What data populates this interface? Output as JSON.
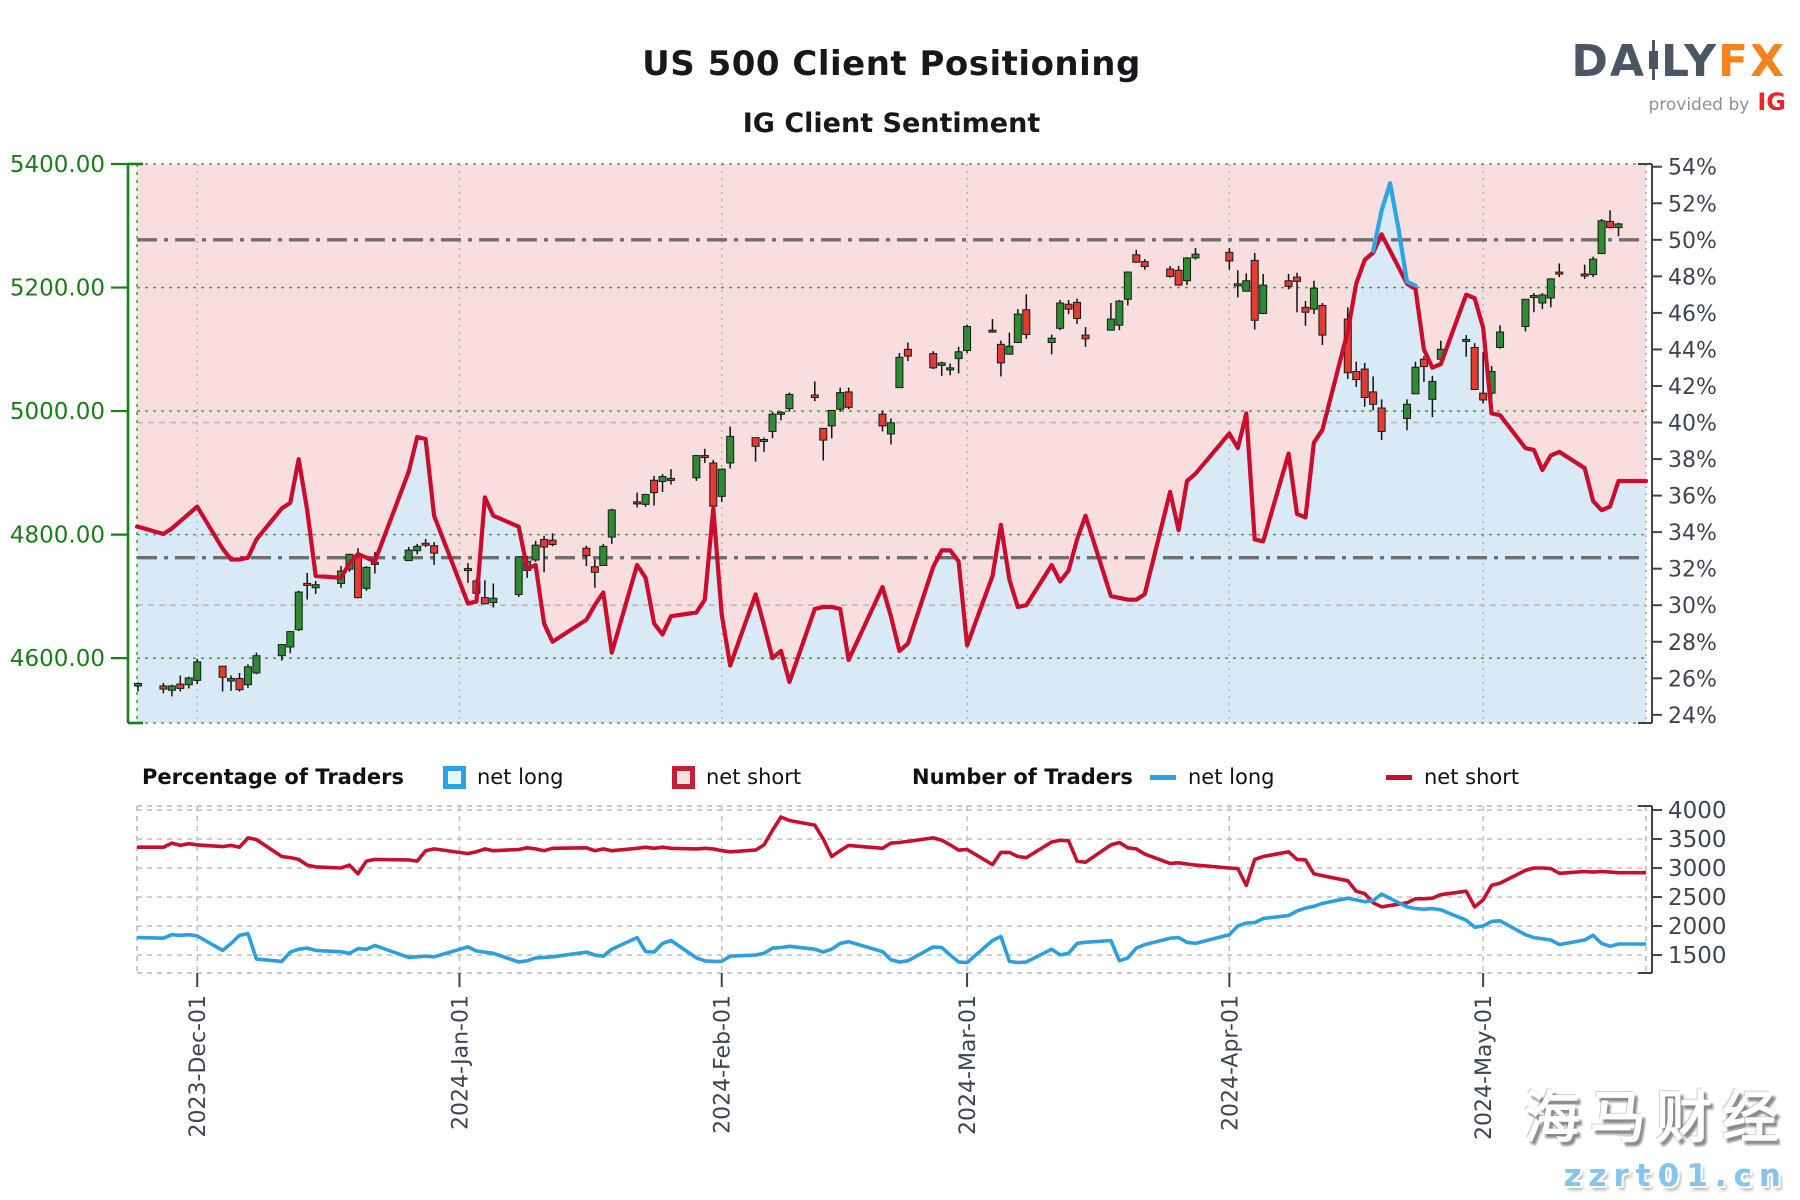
{
  "header": {
    "title": "US 500 Client Positioning",
    "subtitle": "IG Client Sentiment",
    "logo": {
      "part1": "DA",
      "part2": "LY",
      "part3": "FX",
      "provided_by": "provided by",
      "ig": "IG"
    }
  },
  "legend": {
    "group1_label": "Percentage of Traders",
    "pct_net_long_label": "net long",
    "pct_net_short_label": "net short",
    "group2_label": "Number of Traders",
    "num_net_long_label": "net long",
    "num_net_short_label": "net short"
  },
  "watermark": {
    "line1": "海马财经",
    "line2": "zzrt01.cn"
  },
  "colors": {
    "pink_fill": "#f8dede",
    "blue_fill": "#d9e9f5",
    "candle_up": "#2e8b33",
    "candle_down": "#e23b32",
    "candle_outline": "#1a1a1a",
    "pct_short_line": "#cb0c2c",
    "pct_long_line": "#2ea3e6",
    "traders_short_line": "#c8102e",
    "traders_long_line": "#2d9fe0",
    "price_axis_green": "#1a7d1a",
    "green_grid": "#4ca04c",
    "slate_axis": "#3c4653",
    "gray_dashdot": "#6e6e6e",
    "gray_dashed": "#b9b9b9",
    "month_grid_top": "#a3b5a3",
    "month_grid_bottom": "#bbbbbb"
  },
  "chart_data": [
    {
      "type": "candlestick+line",
      "title": "US 500 price (candles, left axis) with IG client sentiment percentages (lines, right axis)",
      "left_axis": {
        "min": 4495,
        "max": 5400,
        "ticks": [
          5400,
          5200,
          4800,
          5000,
          4600
        ],
        "tick_labels": [
          "5400.00",
          "5200.00",
          "5000.00",
          "4800.00",
          "4600.00"
        ],
        "tick_values": [
          5400,
          5200,
          5000,
          4800,
          4600
        ]
      },
      "right_axis": {
        "min": 23.55,
        "max": 54.15,
        "tick_values": [
          54,
          52,
          50,
          48,
          46,
          44,
          42,
          40,
          38,
          36,
          34,
          32,
          30,
          28,
          26,
          24
        ],
        "tick_labels": [
          "54%",
          "52%",
          "50%",
          "48%",
          "46%",
          "44%",
          "42%",
          "40%",
          "38%",
          "36%",
          "34%",
          "32%",
          "30%",
          "28%",
          "26%",
          "24%"
        ]
      },
      "reference_lines": [
        {
          "value_pct": 50.0,
          "style": "dashdot"
        },
        {
          "value_pct": 32.6,
          "style": "dashdot"
        },
        {
          "value_pct": 40.0,
          "style": "dashed"
        },
        {
          "value_pct": 30.0,
          "style": "dashed"
        }
      ],
      "month_ticks": [
        {
          "date": "2023-12-01",
          "label": "2023-Dec-01"
        },
        {
          "date": "2024-01-01",
          "label": "2024-Jan-01"
        },
        {
          "date": "2024-02-01",
          "label": "2024-Feb-01"
        },
        {
          "date": "2024-03-01",
          "label": "2024-Mar-01"
        },
        {
          "date": "2024-04-01",
          "label": "2024-Apr-01"
        },
        {
          "date": "2024-05-01",
          "label": "2024-May-01"
        }
      ],
      "dates": [
        "2023-11-24",
        "2023-11-27",
        "2023-11-28",
        "2023-11-29",
        "2023-11-30",
        "2023-12-01",
        "2023-12-04",
        "2023-12-05",
        "2023-12-06",
        "2023-12-07",
        "2023-12-08",
        "2023-12-11",
        "2023-12-12",
        "2023-12-13",
        "2023-12-14",
        "2023-12-15",
        "2023-12-18",
        "2023-12-19",
        "2023-12-20",
        "2023-12-21",
        "2023-12-22",
        "2023-12-26",
        "2023-12-27",
        "2023-12-28",
        "2023-12-29",
        "2024-01-02",
        "2024-01-03",
        "2024-01-04",
        "2024-01-05",
        "2024-01-08",
        "2024-01-09",
        "2024-01-10",
        "2024-01-11",
        "2024-01-12",
        "2024-01-16",
        "2024-01-17",
        "2024-01-18",
        "2024-01-19",
        "2024-01-22",
        "2024-01-23",
        "2024-01-24",
        "2024-01-25",
        "2024-01-26",
        "2024-01-29",
        "2024-01-30",
        "2024-01-31",
        "2024-02-01",
        "2024-02-02",
        "2024-02-05",
        "2024-02-06",
        "2024-02-07",
        "2024-02-08",
        "2024-02-09",
        "2024-02-12",
        "2024-02-13",
        "2024-02-14",
        "2024-02-15",
        "2024-02-16",
        "2024-02-20",
        "2024-02-21",
        "2024-02-22",
        "2024-02-23",
        "2024-02-26",
        "2024-02-27",
        "2024-02-28",
        "2024-02-29",
        "2024-03-01",
        "2024-03-04",
        "2024-03-05",
        "2024-03-06",
        "2024-03-07",
        "2024-03-08",
        "2024-03-11",
        "2024-03-12",
        "2024-03-13",
        "2024-03-14",
        "2024-03-15",
        "2024-03-18",
        "2024-03-19",
        "2024-03-20",
        "2024-03-21",
        "2024-03-22",
        "2024-03-25",
        "2024-03-26",
        "2024-03-27",
        "2024-03-28",
        "2024-04-01",
        "2024-04-02",
        "2024-04-03",
        "2024-04-04",
        "2024-04-05",
        "2024-04-08",
        "2024-04-09",
        "2024-04-10",
        "2024-04-11",
        "2024-04-12",
        "2024-04-15",
        "2024-04-16",
        "2024-04-17",
        "2024-04-18",
        "2024-04-19",
        "2024-04-22",
        "2024-04-23",
        "2024-04-24",
        "2024-04-25",
        "2024-04-26",
        "2024-04-29",
        "2024-04-30",
        "2024-05-01",
        "2024-05-02",
        "2024-05-03",
        "2024-05-06",
        "2024-05-07",
        "2024-05-08",
        "2024-05-09",
        "2024-05-10",
        "2024-05-13",
        "2024-05-14",
        "2024-05-15",
        "2024-05-16",
        "2024-05-17"
      ],
      "candles": {
        "open": [
          4555,
          4555,
          4548,
          4558,
          4557,
          4564,
          4587,
          4563,
          4567,
          4557,
          4576,
          4604,
          4618,
          4646,
          4721,
          4714,
          4721,
          4744,
          4764,
          4713,
          4754,
          4758,
          4774,
          4786,
          4782,
          4745,
          4725,
          4698,
          4690,
          4703,
          4742,
          4759,
          4792,
          4791,
          4778,
          4748,
          4750,
          4796,
          4853,
          4849,
          4888,
          4886,
          4889,
          4892,
          4928,
          4916,
          4862,
          4916,
          4957,
          4951,
          4967,
          4996,
          5004,
          5026,
          4972,
          4976,
          5003,
          5031,
          4995,
          4963,
          5038,
          5100,
          5093,
          5074,
          5067,
          5085,
          5098,
          5131,
          5108,
          5092,
          5111,
          5164,
          5111,
          5134,
          5173,
          5176,
          5123,
          5131,
          5139,
          5181,
          5253,
          5242,
          5230,
          5228,
          5211,
          5248,
          5257,
          5204,
          5194,
          5244,
          5158,
          5211,
          5217,
          5168,
          5165,
          5171,
          5149,
          5064,
          5068,
          5031,
          5005,
          4988,
          5028,
          5084,
          5019,
          5084,
          5114,
          5103,
          5029,
          5029,
          5103,
          5137,
          5187,
          5175,
          5183,
          5225,
          5222,
          5221,
          5255,
          5307,
          5297
        ],
        "high": [
          4561,
          4560,
          4557,
          4572,
          4570,
          4599,
          4587,
          4572,
          4576,
          4590,
          4609,
          4623,
          4644,
          4709,
          4738,
          4725,
          4749,
          4769,
          4778,
          4749,
          4772,
          4780,
          4785,
          4793,
          4788,
          4754,
          4729,
          4726,
          4721,
          4764,
          4765,
          4790,
          4798,
          4802,
          4782,
          4760,
          4785,
          4842,
          4868,
          4866,
          4895,
          4898,
          4906,
          4929,
          4939,
          4921,
          4907,
          4975,
          4957,
          4957,
          4999,
          5000,
          5030,
          5048,
          4972,
          5002,
          5038,
          5038,
          5000,
          4988,
          5094,
          5111,
          5097,
          5080,
          5077,
          5104,
          5140,
          5149,
          5114,
          5127,
          5165,
          5189,
          5124,
          5180,
          5180,
          5182,
          5136,
          5175,
          5180,
          5226,
          5261,
          5246,
          5235,
          5235,
          5249,
          5264,
          5264,
          5228,
          5223,
          5256,
          5222,
          5222,
          5224,
          5178,
          5211,
          5175,
          5168,
          5080,
          5078,
          5056,
          5019,
          5019,
          5080,
          5089,
          5057,
          5114,
          5123,
          5110,
          5096,
          5073,
          5139,
          5181,
          5191,
          5191,
          5215,
          5239,
          5237,
          5250,
          5311,
          5325,
          5305
        ],
        "low": [
          4546,
          4543,
          4538,
          4546,
          4551,
          4558,
          4546,
          4547,
          4546,
          4552,
          4574,
          4596,
          4608,
          4644,
          4695,
          4704,
          4714,
          4740,
          4697,
          4709,
          4737,
          4758,
          4768,
          4780,
          4751,
          4722,
          4699,
          4687,
          4682,
          4699,
          4730,
          4756,
          4739,
          4781,
          4749,
          4714,
          4750,
          4785,
          4844,
          4845,
          4847,
          4869,
          4881,
          4887,
          4916,
          4845,
          4853,
          4907,
          4918,
          4934,
          4956,
          4985,
          4999,
          5016,
          4920,
          4956,
          4999,
          5003,
          4967,
          4946,
          5038,
          5081,
          5068,
          5057,
          5058,
          5061,
          5094,
          5127,
          5056,
          5092,
          5111,
          5117,
          5092,
          5131,
          5157,
          5141,
          5104,
          5131,
          5131,
          5171,
          5240,
          5229,
          5216,
          5203,
          5204,
          5245,
          5229,
          5184,
          5194,
          5132,
          5157,
          5197,
          5160,
          5138,
          5157,
          5107,
          5052,
          5039,
          5007,
          5001,
          4953,
          4969,
          5028,
          5047,
          4990,
          5073,
          5088,
          5035,
          5013,
          5011,
          5101,
          5129,
          5160,
          5165,
          5168,
          5217,
          5214,
          5217,
          5255,
          5296,
          5283
        ],
        "close": [
          4559,
          4550,
          4555,
          4551,
          4568,
          4594,
          4569,
          4567,
          4549,
          4586,
          4604,
          4622,
          4643,
          4707,
          4720,
          4719,
          4741,
          4768,
          4698,
          4747,
          4755,
          4775,
          4781,
          4783,
          4770,
          4743,
          4705,
          4688,
          4697,
          4764,
          4757,
          4783,
          4780,
          4784,
          4766,
          4739,
          4781,
          4840,
          4850,
          4865,
          4868,
          4894,
          4891,
          4928,
          4925,
          4846,
          4906,
          4959,
          4943,
          4954,
          4995,
          4998,
          5027,
          5022,
          4953,
          5001,
          5030,
          5006,
          4976,
          4981,
          5087,
          5089,
          5070,
          5078,
          5070,
          5096,
          5137,
          5131,
          5078,
          5105,
          5157,
          5124,
          5118,
          5175,
          5165,
          5150,
          5117,
          5149,
          5178,
          5225,
          5241,
          5234,
          5218,
          5204,
          5248,
          5254,
          5243,
          5206,
          5211,
          5147,
          5204,
          5202,
          5210,
          5160,
          5199,
          5123,
          5062,
          5051,
          5022,
          5011,
          4967,
          5011,
          5071,
          5072,
          5048,
          5100,
          5116,
          5035,
          5018,
          5064,
          5128,
          5181,
          5187,
          5188,
          5214,
          5223,
          5221,
          5246,
          5308,
          5297,
          5303
        ]
      },
      "pct_net_short": [
        34.3,
        33.9,
        34.2,
        34.6,
        35.0,
        35.4,
        33.1,
        32.5,
        32.5,
        32.6,
        33.6,
        35.3,
        35.6,
        38.0,
        35.2,
        31.6,
        31.5,
        32.3,
        32.8,
        32.6,
        32.4,
        37.3,
        39.2,
        39.1,
        34.9,
        30.1,
        30.2,
        35.9,
        34.9,
        34.3,
        32.0,
        32.2,
        29.0,
        28.0,
        29.2,
        30.0,
        30.7,
        27.4,
        32.2,
        31.5,
        29.0,
        28.4,
        29.4,
        29.6,
        30.3,
        35.3,
        29.5,
        26.7,
        30.6,
        28.9,
        27.1,
        27.5,
        25.8,
        29.8,
        29.9,
        29.9,
        29.8,
        27.0,
        31.0,
        29.4,
        27.5,
        27.9,
        32.1,
        33.0,
        33.0,
        32.4,
        27.8,
        31.6,
        34.4,
        31.4,
        29.9,
        30.0,
        32.2,
        31.3,
        31.9,
        33.6,
        34.9,
        30.5,
        30.4,
        30.3,
        30.3,
        30.6,
        36.2,
        34.1,
        36.8,
        37.2,
        39.4,
        38.6,
        40.5,
        33.6,
        33.5,
        38.3,
        35.0,
        34.8,
        38.9,
        39.6,
        45.0,
        47.6,
        48.9,
        49.3,
        50.3,
        47.6,
        47.3,
        44.0,
        43.0,
        43.2,
        47.0,
        46.8,
        45.2,
        40.5,
        40.4,
        38.6,
        38.5,
        37.4,
        38.2,
        38.4,
        37.5,
        35.7,
        35.2,
        35.4,
        36.8
      ],
      "pct_net_long_visible_segment": {
        "dates": [
          "2024-04-18",
          "2024-04-19",
          "2024-04-20",
          "2024-04-21",
          "2024-04-22",
          "2024-04-23"
        ],
        "values": [
          49.4,
          51.6,
          53.1,
          50.6,
          47.7,
          47.5
        ]
      }
    },
    {
      "type": "line",
      "title": "Number of traders net-long / net-short",
      "right_axis": {
        "min": 1190,
        "max": 4070,
        "tick_values": [
          4000,
          3500,
          3000,
          2500,
          2000,
          1500
        ],
        "tick_labels": [
          "4000",
          "3500",
          "3000",
          "2500",
          "2000",
          "1500"
        ]
      },
      "net_long_traders": [
        1800,
        1790,
        1850,
        1840,
        1850,
        1830,
        1580,
        1700,
        1840,
        1870,
        1430,
        1390,
        1550,
        1600,
        1620,
        1580,
        1555,
        1530,
        1610,
        1600,
        1665,
        1460,
        1470,
        1480,
        1470,
        1640,
        1570,
        1550,
        1530,
        1380,
        1400,
        1450,
        1460,
        1470,
        1550,
        1500,
        1480,
        1600,
        1800,
        1560,
        1550,
        1700,
        1750,
        1450,
        1400,
        1390,
        1390,
        1480,
        1500,
        1530,
        1620,
        1630,
        1650,
        1600,
        1550,
        1600,
        1700,
        1730,
        1560,
        1420,
        1380,
        1400,
        1640,
        1630,
        1500,
        1380,
        1370,
        1750,
        1820,
        1390,
        1370,
        1380,
        1600,
        1500,
        1530,
        1700,
        1720,
        1750,
        1400,
        1450,
        1620,
        1680,
        1790,
        1800,
        1720,
        1700,
        1850,
        2000,
        2050,
        2060,
        2130,
        2180,
        2260,
        2310,
        2340,
        2390,
        2480,
        2450,
        2420,
        2440,
        2550,
        2330,
        2300,
        2290,
        2300,
        2280,
        2100,
        1980,
        2000,
        2080,
        2090,
        1850,
        1800,
        1780,
        1760,
        1680,
        1760,
        1840,
        1700,
        1650,
        1690
      ],
      "net_short_traders": [
        3360,
        3360,
        3430,
        3390,
        3420,
        3400,
        3370,
        3390,
        3360,
        3520,
        3490,
        3200,
        3180,
        3150,
        3050,
        3020,
        3000,
        3050,
        2900,
        3120,
        3150,
        3140,
        3120,
        3300,
        3330,
        3250,
        3280,
        3330,
        3300,
        3320,
        3350,
        3330,
        3300,
        3340,
        3350,
        3300,
        3330,
        3300,
        3340,
        3360,
        3340,
        3360,
        3340,
        3330,
        3340,
        3330,
        3300,
        3280,
        3310,
        3400,
        3650,
        3880,
        3820,
        3740,
        3500,
        3200,
        3300,
        3390,
        3340,
        3430,
        3440,
        3460,
        3520,
        3480,
        3400,
        3310,
        3320,
        3060,
        3270,
        3270,
        3200,
        3180,
        3450,
        3480,
        3470,
        3120,
        3100,
        3400,
        3440,
        3350,
        3330,
        3240,
        3080,
        3090,
        3070,
        3050,
        3000,
        2990,
        2700,
        3150,
        3200,
        3280,
        3150,
        3140,
        2900,
        2870,
        2780,
        2600,
        2560,
        2400,
        2330,
        2400,
        2470,
        2470,
        2480,
        2540,
        2600,
        2330,
        2450,
        2700,
        2740,
        2960,
        3000,
        3000,
        2990,
        2910,
        2940,
        2930,
        2940,
        2930,
        2920
      ]
    }
  ]
}
